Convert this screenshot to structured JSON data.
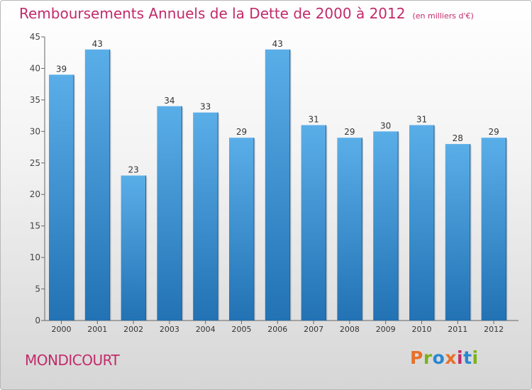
{
  "title": "Remboursements Annuels de la Dette de 2000 à 2012",
  "unit_note": "(en milliers d'€)",
  "commune": "MONDICOURT",
  "logo_text": "Proxiti",
  "colors": {
    "title": "#c22a6a",
    "bar_top": "#5aaee8",
    "bar_bottom": "#2272b4",
    "logo": [
      "#e8702a",
      "#7ab317",
      "#2a87d0",
      "#e8702a",
      "#c22a6a",
      "#2a87d0",
      "#7ab317"
    ]
  },
  "chart_data": {
    "type": "bar",
    "title": "Remboursements Annuels de la Dette de 2000 à 2012",
    "categories": [
      "2000",
      "2001",
      "2002",
      "2003",
      "2004",
      "2005",
      "2006",
      "2007",
      "2008",
      "2009",
      "2010",
      "2011",
      "2012"
    ],
    "values": [
      39,
      43,
      23,
      34,
      33,
      29,
      43,
      31,
      29,
      30,
      31,
      28,
      29
    ],
    "ylim": [
      0,
      45
    ],
    "yticks": [
      0,
      5,
      10,
      15,
      20,
      25,
      30,
      35,
      40,
      45
    ],
    "grid": false
  }
}
